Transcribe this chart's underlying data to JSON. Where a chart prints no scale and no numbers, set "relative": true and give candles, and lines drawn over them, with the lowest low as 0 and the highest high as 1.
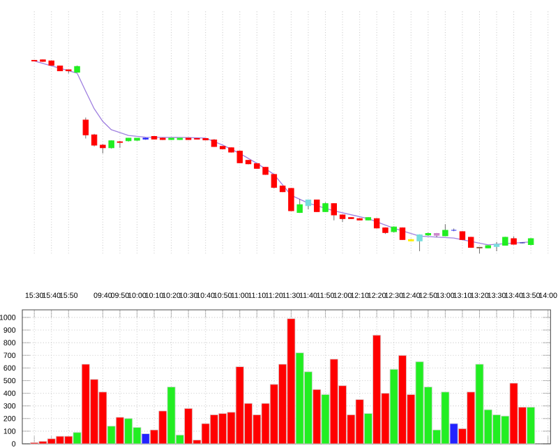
{
  "chart_data": [
    {
      "type": "candlestick",
      "relative": true,
      "grid": "x",
      "categories": [
        "15:30",
        null,
        "15:40",
        null,
        "15:50",
        null,
        null,
        null,
        "09:40",
        null,
        "09:50",
        null,
        "10:00",
        null,
        "10:10",
        null,
        "10:20",
        null,
        "10:30",
        null,
        "10:40",
        null,
        "10:50",
        null,
        "11:00",
        null,
        "11:10",
        null,
        "11:20",
        null,
        "11:30",
        null,
        "11:40",
        null,
        "11:50",
        null,
        "12:00",
        null,
        "12:10",
        null,
        "12:20",
        null,
        "12:30",
        null,
        "12:40",
        null,
        "12:50",
        null,
        "13:00",
        null,
        "13:10",
        null,
        "13:20",
        null,
        "13:30",
        null,
        "13:40",
        null,
        "13:50",
        null,
        "14:00"
      ],
      "ohlc": [
        [
          0.996,
          0.998,
          0.993,
          0.993
        ],
        [
          0.998,
          1.0,
          0.988,
          0.991
        ],
        [
          0.993,
          0.996,
          0.969,
          0.971
        ],
        [
          0.967,
          0.969,
          0.94,
          0.942
        ],
        [
          0.947,
          0.947,
          0.928,
          0.942
        ],
        [
          0.935,
          0.969,
          0.933,
          0.964
        ],
        [
          0.688,
          0.701,
          0.593,
          0.612
        ],
        [
          0.612,
          0.617,
          0.552,
          0.559
        ],
        [
          0.559,
          0.564,
          0.516,
          0.545
        ],
        [
          0.545,
          0.584,
          0.541,
          0.581
        ],
        [
          0.576,
          0.581,
          0.545,
          0.573
        ],
        [
          0.581,
          0.595,
          0.577,
          0.595
        ],
        [
          0.584,
          0.595,
          0.581,
          0.595
        ],
        [
          0.59,
          0.597,
          0.586,
          0.595
        ],
        [
          0.604,
          0.607,
          0.588,
          0.59
        ],
        [
          0.595,
          0.597,
          0.586,
          0.588
        ],
        [
          0.588,
          0.595,
          0.586,
          0.595
        ],
        [
          0.588,
          0.595,
          0.586,
          0.595
        ],
        [
          0.595,
          0.597,
          0.586,
          0.588
        ],
        [
          0.593,
          0.595,
          0.588,
          0.59
        ],
        [
          0.593,
          0.595,
          0.583,
          0.586
        ],
        [
          0.586,
          0.59,
          0.55,
          0.552
        ],
        [
          0.552,
          0.554,
          0.537,
          0.54
        ],
        [
          0.545,
          0.547,
          0.521,
          0.523
        ],
        [
          0.528,
          0.532,
          0.465,
          0.468
        ],
        [
          0.48,
          0.482,
          0.46,
          0.463
        ],
        [
          0.463,
          0.465,
          0.437,
          0.439
        ],
        [
          0.444,
          0.446,
          0.406,
          0.408
        ],
        [
          0.408,
          0.41,
          0.336,
          0.341
        ],
        [
          0.348,
          0.35,
          0.317,
          0.319
        ],
        [
          0.336,
          0.338,
          0.219,
          0.221
        ],
        [
          0.212,
          0.281,
          0.209,
          0.252
        ],
        [
          0.247,
          0.278,
          0.228,
          0.276
        ],
        [
          0.276,
          0.278,
          0.214,
          0.216
        ],
        [
          0.216,
          0.264,
          0.214,
          0.257
        ],
        [
          0.257,
          0.259,
          0.171,
          0.199
        ],
        [
          0.199,
          0.201,
          0.163,
          0.18
        ],
        [
          0.185,
          0.187,
          0.178,
          0.18
        ],
        [
          0.18,
          0.183,
          0.171,
          0.173
        ],
        [
          0.173,
          0.187,
          0.171,
          0.185
        ],
        [
          0.18,
          0.183,
          0.129,
          0.132
        ],
        [
          0.132,
          0.135,
          0.101,
          0.108
        ],
        [
          0.113,
          0.14,
          0.108,
          0.137
        ],
        [
          0.132,
          0.135,
          0.07,
          0.072
        ],
        [
          0.072,
          0.075,
          0.063,
          0.065
        ],
        [
          0.065,
          0.099,
          0.012,
          0.096
        ],
        [
          0.096,
          0.108,
          0.091,
          0.104
        ],
        [
          0.104,
          0.106,
          0.084,
          0.094
        ],
        [
          0.091,
          0.151,
          0.089,
          0.12
        ],
        [
          0.12,
          0.129,
          0.115,
          0.12
        ],
        [
          0.113,
          0.115,
          0.07,
          0.072
        ],
        [
          0.084,
          0.086,
          0.029,
          0.032
        ],
        [
          0.032,
          0.034,
          0.0,
          0.029
        ],
        [
          0.029,
          0.043,
          0.027,
          0.041
        ],
        [
          0.036,
          0.06,
          0.012,
          0.048
        ],
        [
          0.043,
          0.086,
          0.041,
          0.084
        ],
        [
          0.077,
          0.089,
          0.046,
          0.048
        ],
        [
          0.055,
          0.058,
          0.053,
          0.055
        ],
        [
          0.046,
          0.079,
          0.043,
          0.077
        ],
        null,
        null
      ],
      "colors": [
        "#ff0000",
        "#ff0000",
        "#ff0000",
        "#ff0000",
        "#ff0000",
        "#22ee22",
        "#ff0000",
        "#ff0000",
        "#ff0000",
        "#22ee22",
        "#ff0000",
        "#22ee22",
        "#22ee22",
        "#2222ff",
        "#ff0000",
        "#ff0000",
        "#22ee22",
        "#22ee22",
        "#ff0000",
        "#ff0000",
        "#ff0000",
        "#ff0000",
        "#ff0000",
        "#ff0000",
        "#ff0000",
        "#ff0000",
        "#ff0000",
        "#ff0000",
        "#ff0000",
        "#ff0000",
        "#ff0000",
        "#22ee22",
        "#77dddd",
        "#ff0000",
        "#22ee22",
        "#ff0000",
        "#ff0000",
        "#ff0000",
        "#ff0000",
        "#22ee22",
        "#ff0000",
        "#ff0000",
        "#22ee22",
        "#ff0000",
        "#ffee00",
        "#77dddd",
        "#22ee22",
        "#cc88cc",
        "#22ee22",
        "#2222ff",
        "#ff0000",
        "#ff0000",
        "#886644",
        "#22ee22",
        "#77dddd",
        "#22ee22",
        "#ff0000",
        "#2222aa",
        "#22ee22",
        null,
        null
      ],
      "series": [
        {
          "type": "line",
          "color": "#a080e0",
          "values": [
            0.993,
            null,
            null,
            null,
            null,
            0.93,
            0.837,
            0.746,
            0.681,
            0.638,
            null,
            0.609,
            null,
            0.6,
            null,
            null,
            null,
            null,
            0.598,
            null,
            0.595,
            null,
            0.559,
            null,
            0.516,
            null,
            0.465,
            null,
            0.408,
            null,
            0.3,
            null,
            0.26,
            null,
            null,
            0.22,
            null,
            null,
            null,
            0.18,
            null,
            null,
            0.13,
            null,
            null,
            0.09,
            null,
            null,
            null,
            0.08,
            null,
            null,
            null,
            0.045,
            null,
            null,
            null,
            null,
            0.06,
            null,
            null
          ]
        }
      ]
    },
    {
      "type": "bar",
      "grid": true,
      "tick_labels": "y",
      "ylim": [
        0,
        1060
      ],
      "yticks": [
        0,
        100,
        200,
        300,
        400,
        500,
        600,
        700,
        800,
        900,
        1000
      ],
      "categories": [
        null,
        null,
        null,
        null,
        null,
        null,
        null,
        null,
        null,
        null,
        null,
        null,
        null,
        null,
        null,
        null,
        null,
        null,
        null,
        null,
        null,
        null,
        null,
        null,
        null,
        null,
        null,
        null,
        null,
        null,
        null,
        null,
        null,
        null,
        null,
        null,
        null,
        null,
        null,
        null,
        null,
        null,
        null,
        null,
        null,
        null,
        null,
        null,
        null,
        null,
        null,
        null,
        null,
        null,
        null,
        null,
        null,
        null,
        null,
        null,
        null
      ],
      "values": [
        10,
        20,
        40,
        60,
        60,
        90,
        630,
        510,
        410,
        140,
        210,
        200,
        130,
        80,
        110,
        260,
        450,
        70,
        280,
        30,
        160,
        230,
        240,
        250,
        610,
        320,
        230,
        320,
        470,
        630,
        990,
        720,
        570,
        430,
        390,
        670,
        460,
        230,
        350,
        240,
        860,
        400,
        590,
        700,
        390,
        650,
        450,
        110,
        410,
        160,
        120,
        410,
        630,
        270,
        230,
        220,
        480,
        290,
        290,
        null,
        null
      ],
      "colors": [
        "#ff0000",
        "#ff0000",
        "#ff0000",
        "#ff0000",
        "#ff0000",
        "#22ee22",
        "#ff0000",
        "#ff0000",
        "#ff0000",
        "#22ee22",
        "#ff0000",
        "#22ee22",
        "#22ee22",
        "#2222ff",
        "#ff0000",
        "#ff0000",
        "#22ee22",
        "#22ee22",
        "#ff0000",
        "#ff0000",
        "#ff0000",
        "#ff0000",
        "#ff0000",
        "#ff0000",
        "#ff0000",
        "#ff0000",
        "#ff0000",
        "#ff0000",
        "#ff0000",
        "#ff0000",
        "#ff0000",
        "#22ee22",
        "#22ee22",
        "#ff0000",
        "#22ee22",
        "#ff0000",
        "#ff0000",
        "#ff0000",
        "#ff0000",
        "#22ee22",
        "#ff0000",
        "#ff0000",
        "#22ee22",
        "#ff0000",
        "#ff0000",
        "#22ee22",
        "#22ee22",
        "#22ee22",
        "#22ee22",
        "#2222ff",
        "#ff0000",
        "#ff0000",
        "#22ee22",
        "#22ee22",
        "#22ee22",
        "#22ee22",
        "#ff0000",
        "#ff0000",
        "#22ee22",
        null,
        null
      ]
    }
  ]
}
